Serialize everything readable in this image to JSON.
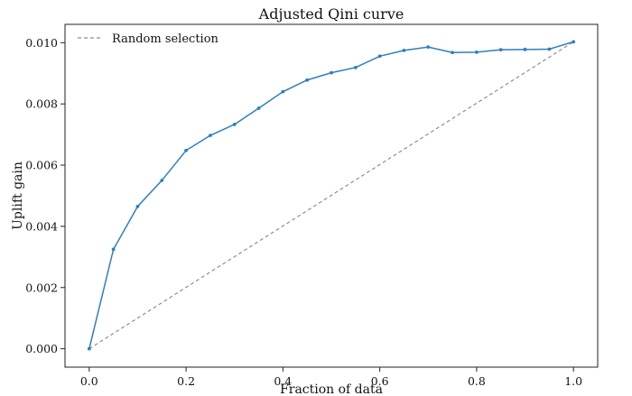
{
  "chart_data": {
    "type": "line",
    "title": "Adjusted Qini curve",
    "xlabel": "Fraction of data",
    "ylabel": "Uplift gain",
    "xlim": [
      -0.05,
      1.05
    ],
    "ylim": [
      -0.0006,
      0.0106
    ],
    "xticks": [
      0.0,
      0.2,
      0.4,
      0.6,
      0.8,
      1.0
    ],
    "xtick_labels": [
      "0.0",
      "0.2",
      "0.4",
      "0.6",
      "0.8",
      "1.0"
    ],
    "yticks": [
      0.0,
      0.002,
      0.004,
      0.006,
      0.008,
      0.01
    ],
    "ytick_labels": [
      "0.000",
      "0.002",
      "0.004",
      "0.006",
      "0.008",
      "0.010"
    ],
    "grid": false,
    "legend_position": "top-left",
    "series": [
      {
        "name": "Qini curve",
        "color": "#2f7ebc",
        "style": "solid",
        "marker": "dot",
        "show_in_legend": false,
        "x": [
          0.0,
          0.05,
          0.1,
          0.15,
          0.2,
          0.25,
          0.3,
          0.35,
          0.4,
          0.45,
          0.5,
          0.55,
          0.6,
          0.65,
          0.7,
          0.75,
          0.8,
          0.85,
          0.9,
          0.95,
          1.0
        ],
        "y": [
          0.0,
          0.00325,
          0.00465,
          0.0055,
          0.00648,
          0.00697,
          0.00733,
          0.00786,
          0.0084,
          0.00878,
          0.00902,
          0.00919,
          0.00956,
          0.00975,
          0.00986,
          0.00968,
          0.00969,
          0.00977,
          0.00978,
          0.00979,
          0.01003
        ]
      },
      {
        "name": "Random selection",
        "color": "#8c8c8c",
        "style": "dashed",
        "marker": "none",
        "show_in_legend": true,
        "x": [
          0.0,
          1.0
        ],
        "y": [
          0.0,
          0.01003
        ]
      }
    ]
  }
}
